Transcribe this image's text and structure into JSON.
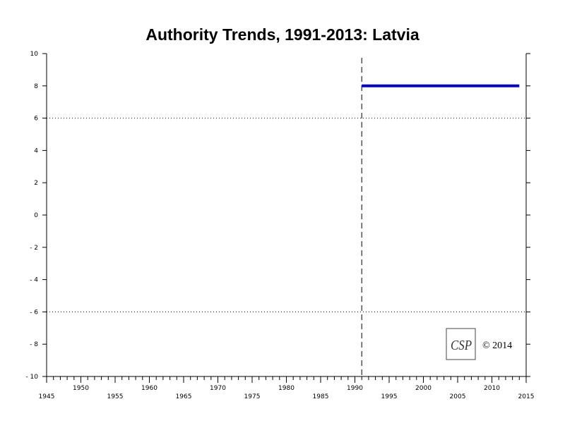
{
  "chart_data": {
    "type": "line",
    "title": "Authority Trends, 1991-2013: Latvia",
    "xlabel": "",
    "ylabel": "",
    "xlim": [
      1945,
      2015
    ],
    "ylim": [
      -10,
      10
    ],
    "x_ticks": [
      1945,
      1950,
      1955,
      1960,
      1965,
      1970,
      1975,
      1980,
      1985,
      1990,
      1995,
      2000,
      2005,
      2010,
      2015
    ],
    "y_ticks": [
      10,
      8,
      6,
      4,
      2,
      0,
      -2,
      -4,
      -6,
      -8,
      -10
    ],
    "y_tick_labels": [
      "10",
      "8",
      "6",
      "4",
      "2",
      "0",
      "- 2",
      "- 4",
      "- 6",
      "- 8",
      "- 10"
    ],
    "reference_lines_y": [
      6,
      -6
    ],
    "event_lines_x": [
      1991
    ],
    "series": [
      {
        "color": "#0000cc",
        "x": [
          1991,
          2014
        ],
        "y": [
          8,
          8
        ]
      }
    ],
    "grid": false,
    "legend": "none"
  },
  "watermark": {
    "logo_text": "CSP",
    "copyright": "© 2014"
  }
}
